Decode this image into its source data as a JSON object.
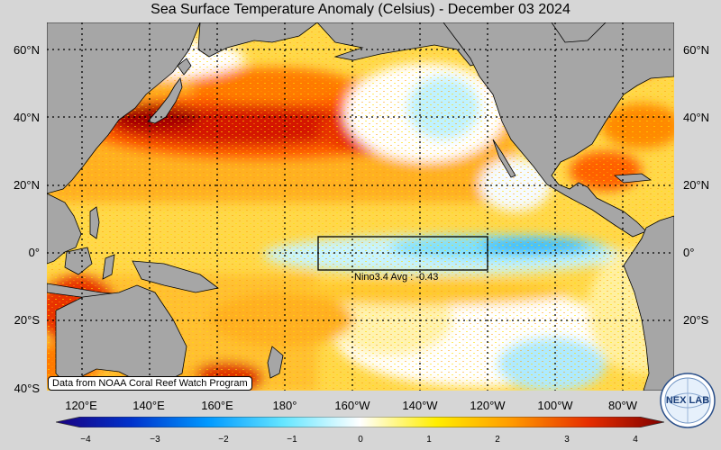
{
  "title": "Sea Surface Temperature Anomaly (Celsius) - December 03 2024",
  "latitude_labels": [
    "60°N",
    "40°N",
    "20°N",
    "0°",
    "20°S",
    "40°S"
  ],
  "longitude_labels": [
    "120°E",
    "140°E",
    "160°E",
    "180°",
    "160°W",
    "140°W",
    "120°W",
    "100°W",
    "80°W"
  ],
  "colorbar": {
    "ticks": [
      "−4",
      "−3",
      "−2",
      "−1",
      "0",
      "1",
      "2",
      "3",
      "4"
    ],
    "colors": [
      "#1a0080",
      "#0033cc",
      "#0099ff",
      "#66e6ff",
      "#ffffff",
      "#ffee00",
      "#ff9900",
      "#e62e00",
      "#800000"
    ]
  },
  "box_label": "Nino3.4 Avg : -0.43",
  "credit": "Data from NOAA Coral Reef Watch Program",
  "logo_text": "NEX LAB",
  "colors": {
    "land": "#a8a8a8",
    "background": "#d6d6d6",
    "warm": "#ffb000",
    "hot": "#d40000",
    "cool": "#aaf0ff"
  }
}
